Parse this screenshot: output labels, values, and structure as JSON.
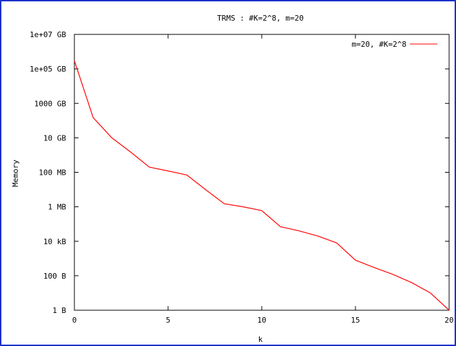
{
  "chart_data": {
    "type": "line",
    "title": "TRMS : #K=2^8, m=20",
    "xlabel": "k",
    "ylabel": "Memory",
    "xlim": [
      0,
      20
    ],
    "xticks": [
      0,
      5,
      10,
      15,
      20
    ],
    "yscale": "log",
    "ylim": [
      1,
      10000000000000000
    ],
    "yticks": [
      {
        "value": 1,
        "label": "1 B"
      },
      {
        "value": 100,
        "label": "100 B"
      },
      {
        "value": 10000,
        "label": "10 kB"
      },
      {
        "value": 1000000,
        "label": "1 MB"
      },
      {
        "value": 100000000,
        "label": "100 MB"
      },
      {
        "value": 10000000000,
        "label": "10 GB"
      },
      {
        "value": 1000000000000,
        "label": "1000 GB"
      },
      {
        "value": 100000000000000,
        "label": "1e+05 GB"
      },
      {
        "value": 10000000000000000,
        "label": "1e+07 GB"
      }
    ],
    "grid": false,
    "legend_position": "top-right",
    "series": [
      {
        "name": "m=20, #K=2^8",
        "color": "#ff0000",
        "x": [
          0,
          1,
          2,
          3,
          4,
          5,
          6,
          7,
          8,
          9,
          10,
          11,
          12,
          13,
          14,
          15,
          16,
          17,
          18,
          19,
          20
        ],
        "y": [
          300000000000000.0,
          150000000000.0,
          10000000000.0,
          1500000000.0,
          200000000.0,
          120000000.0,
          70000000.0,
          10000000.0,
          1500000.0,
          1000000.0,
          600000.0,
          70000.0,
          40000.0,
          20000.0,
          8000.0,
          800.0,
          300.0,
          120.0,
          40.0,
          10.0,
          1
        ]
      }
    ]
  }
}
